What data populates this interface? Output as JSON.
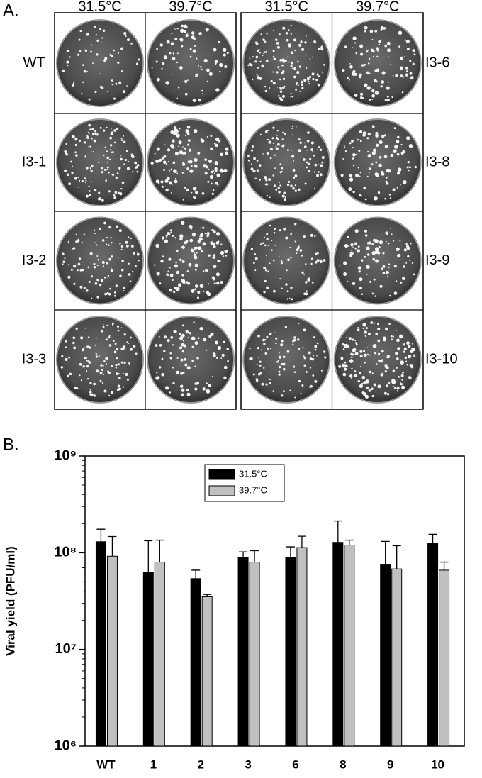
{
  "panel_a": {
    "label": "A.",
    "columns": [
      "31.5°C",
      "39.7°C",
      "31.5°C",
      "39.7°C"
    ],
    "left_rows": [
      "WT",
      "I3-1",
      "I3-2",
      "I3-3"
    ],
    "right_rows": [
      "I3-6",
      "I3-8",
      "I3-9",
      "I3-10"
    ]
  },
  "chart_data": {
    "type": "bar",
    "label": "B.",
    "ylabel": "Viral yield (PFU/ml)",
    "categories": [
      "WT",
      "1",
      "2",
      "3",
      "6",
      "8",
      "9",
      "10"
    ],
    "series": [
      {
        "name": "31.5°C",
        "color": "#000000",
        "values": [
          130000000,
          63000000,
          54000000,
          90000000,
          90000000,
          128000000,
          76000000,
          125000000
        ],
        "errors": [
          45000000,
          70000000,
          12000000,
          12000000,
          25000000,
          85000000,
          55000000,
          30000000
        ]
      },
      {
        "name": "39.7°C",
        "color": "#c0c0c0",
        "values": [
          92000000,
          80000000,
          35000000,
          80000000,
          113000000,
          120000000,
          68000000,
          66000000
        ],
        "errors": [
          55000000,
          55000000,
          2000000,
          25000000,
          35000000,
          15000000,
          50000000,
          14000000
        ]
      }
    ],
    "ylim": [
      1000000,
      1000000000
    ],
    "yticks": [
      {
        "value": 1000000,
        "label": "10⁶"
      },
      {
        "value": 10000000,
        "label": "10⁷"
      },
      {
        "value": 100000000,
        "label": "10⁸"
      },
      {
        "value": 1000000000,
        "label": "10⁹"
      }
    ],
    "log_scale": true,
    "legend": "top"
  }
}
